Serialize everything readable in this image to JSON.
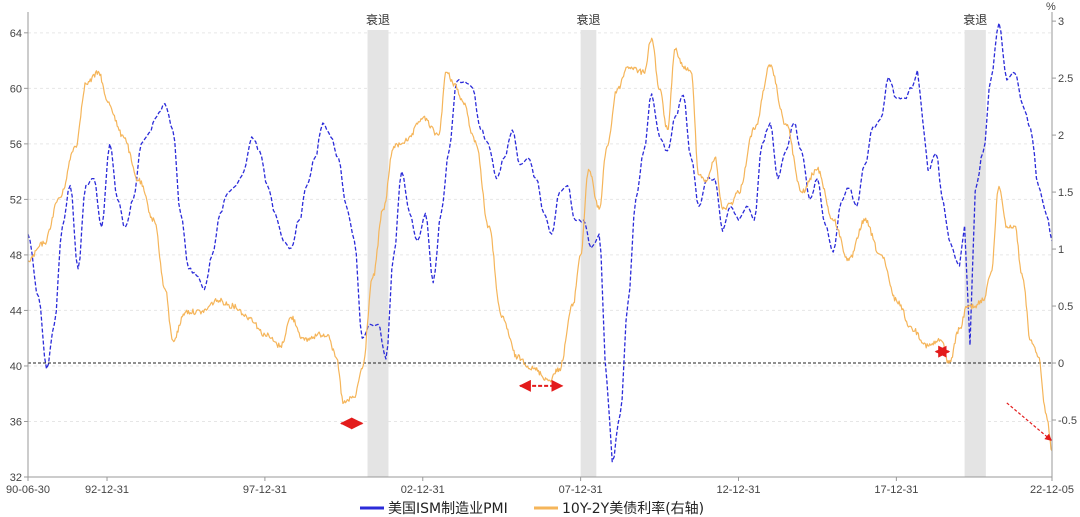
{
  "chart_data": {
    "type": "line",
    "title": "",
    "xlabel": "",
    "ylabel_left": "",
    "ylabel_right": "%",
    "x_range": [
      "1990-06-30",
      "2022-12-05"
    ],
    "x_ticks": [
      "90-06-30",
      "92-12-31",
      "97-12-31",
      "02-12-31",
      "07-12-31",
      "12-12-31",
      "17-12-31",
      "22-12-05"
    ],
    "y_left": {
      "ticks": [
        32,
        36,
        40,
        44,
        48,
        52,
        56,
        60,
        64
      ],
      "range": [
        32,
        65.5
      ]
    },
    "y_right": {
      "ticks": [
        -0.5,
        0,
        0.5,
        1,
        1.5,
        2,
        2.5,
        3
      ],
      "range": [
        -1.0,
        3.08
      ]
    },
    "grid": true,
    "legend_position": "bottom",
    "zero_line_right": 0,
    "recessions": [
      {
        "label": "衰退",
        "start": "2001-03-31",
        "end": "2001-11-30"
      },
      {
        "label": "衰退",
        "start": "2007-12-31",
        "end": "2008-06-30"
      },
      {
        "label": "衰退",
        "start": "2020-02-29",
        "end": "2020-10-31"
      }
    ],
    "inversion_arrows": [
      {
        "from": "2000-05-31",
        "to": "2001-01-31"
      },
      {
        "from": "2006-01-31",
        "to": "2007-05-31"
      },
      {
        "from": "2019-03-31",
        "to": "2019-08-31"
      }
    ],
    "trend_arrow": {
      "from": [
        "2021-06-30",
        -0.35
      ],
      "to": [
        "2022-11-30",
        -0.68
      ]
    },
    "series": [
      {
        "name": "美国ISM制造业PMI",
        "axis": "left",
        "color": "#2b2bd9",
        "style": "dashed",
        "points": [
          [
            "1990-06-30",
            49.5
          ],
          [
            "1990-10-31",
            45
          ],
          [
            "1991-01-31",
            39.8
          ],
          [
            "1991-04-30",
            43
          ],
          [
            "1991-07-31",
            50
          ],
          [
            "1991-10-31",
            53
          ],
          [
            "1992-01-31",
            47
          ],
          [
            "1992-04-30",
            53
          ],
          [
            "1992-07-31",
            53.5
          ],
          [
            "1992-10-31",
            50
          ],
          [
            "1993-01-31",
            56
          ],
          [
            "1993-04-30",
            52
          ],
          [
            "1993-07-31",
            50
          ],
          [
            "1993-10-31",
            52
          ],
          [
            "1994-01-31",
            56
          ],
          [
            "1994-04-30",
            56.8
          ],
          [
            "1994-07-31",
            58
          ],
          [
            "1994-10-31",
            58.9
          ],
          [
            "1995-01-31",
            57
          ],
          [
            "1995-04-30",
            51
          ],
          [
            "1995-07-31",
            47
          ],
          [
            "1995-10-31",
            46.5
          ],
          [
            "1996-01-31",
            45.5
          ],
          [
            "1996-04-30",
            48
          ],
          [
            "1996-07-31",
            51
          ],
          [
            "1996-10-31",
            52.5
          ],
          [
            "1997-01-31",
            53
          ],
          [
            "1997-04-30",
            54
          ],
          [
            "1997-07-31",
            56.5
          ],
          [
            "1997-10-31",
            55.5
          ],
          [
            "1998-01-31",
            53
          ],
          [
            "1998-04-30",
            51
          ],
          [
            "1998-07-31",
            49
          ],
          [
            "1998-10-31",
            48.5
          ],
          [
            "1999-01-31",
            50.5
          ],
          [
            "1999-04-30",
            53
          ],
          [
            "1999-07-31",
            55
          ],
          [
            "1999-10-31",
            57.5
          ],
          [
            "2000-01-31",
            56.5
          ],
          [
            "2000-04-30",
            55
          ],
          [
            "2000-07-31",
            51.5
          ],
          [
            "2000-10-31",
            49
          ],
          [
            "2001-01-31",
            42
          ],
          [
            "2001-04-30",
            43
          ],
          [
            "2001-07-31",
            43
          ],
          [
            "2001-10-31",
            40.5
          ],
          [
            "2002-01-31",
            48
          ],
          [
            "2002-04-30",
            54
          ],
          [
            "2002-07-31",
            51
          ],
          [
            "2002-10-31",
            49
          ],
          [
            "2003-01-31",
            51
          ],
          [
            "2003-04-30",
            46
          ],
          [
            "2003-07-31",
            51
          ],
          [
            "2003-10-31",
            55.5
          ],
          [
            "2004-01-31",
            60.5
          ],
          [
            "2004-04-30",
            60.5
          ],
          [
            "2004-07-31",
            60
          ],
          [
            "2004-10-31",
            57
          ],
          [
            "2005-01-31",
            56
          ],
          [
            "2005-04-30",
            53.5
          ],
          [
            "2005-07-31",
            55
          ],
          [
            "2005-10-31",
            57
          ],
          [
            "2006-01-31",
            54.5
          ],
          [
            "2006-04-30",
            55
          ],
          [
            "2006-07-31",
            53.5
          ],
          [
            "2006-10-31",
            51
          ],
          [
            "2007-01-31",
            49.5
          ],
          [
            "2007-04-30",
            52.5
          ],
          [
            "2007-07-31",
            53
          ],
          [
            "2007-10-31",
            50.5
          ],
          [
            "2008-01-31",
            50.5
          ],
          [
            "2008-04-30",
            48.5
          ],
          [
            "2008-07-31",
            49.5
          ],
          [
            "2008-10-31",
            38.9
          ],
          [
            "2008-12-31",
            33.1
          ],
          [
            "2009-03-31",
            36.5
          ],
          [
            "2009-06-30",
            44.5
          ],
          [
            "2009-09-30",
            52
          ],
          [
            "2009-12-31",
            55.5
          ],
          [
            "2010-03-31",
            59.6
          ],
          [
            "2010-06-30",
            56.5
          ],
          [
            "2010-09-30",
            55.5
          ],
          [
            "2010-12-31",
            58
          ],
          [
            "2011-03-31",
            59.5
          ],
          [
            "2011-06-30",
            55
          ],
          [
            "2011-09-30",
            51.5
          ],
          [
            "2011-12-31",
            53.5
          ],
          [
            "2012-03-31",
            53.5
          ],
          [
            "2012-06-30",
            49.7
          ],
          [
            "2012-09-30",
            51.5
          ],
          [
            "2012-12-31",
            50.5
          ],
          [
            "2013-03-31",
            51.5
          ],
          [
            "2013-06-30",
            50.5
          ],
          [
            "2013-09-30",
            56
          ],
          [
            "2013-12-31",
            57.5
          ],
          [
            "2014-03-31",
            53.5
          ],
          [
            "2014-06-30",
            55.5
          ],
          [
            "2014-09-30",
            57.5
          ],
          [
            "2014-12-31",
            55.5
          ],
          [
            "2015-03-31",
            52
          ],
          [
            "2015-06-30",
            53.5
          ],
          [
            "2015-09-30",
            50.2
          ],
          [
            "2015-12-31",
            48.2
          ],
          [
            "2016-03-31",
            51.8
          ],
          [
            "2016-06-30",
            52.8
          ],
          [
            "2016-09-30",
            51.5
          ],
          [
            "2016-12-31",
            54.5
          ],
          [
            "2017-03-31",
            57.2
          ],
          [
            "2017-06-30",
            57.8
          ],
          [
            "2017-09-30",
            60.8
          ],
          [
            "2017-12-31",
            59.3
          ],
          [
            "2018-03-31",
            59.3
          ],
          [
            "2018-06-30",
            60
          ],
          [
            "2018-08-31",
            61.3
          ],
          [
            "2018-10-31",
            57.7
          ],
          [
            "2018-12-31",
            54.1
          ],
          [
            "2019-03-31",
            55.3
          ],
          [
            "2019-06-30",
            51.7
          ],
          [
            "2019-08-31",
            49.1
          ],
          [
            "2019-12-31",
            47.2
          ],
          [
            "2020-02-29",
            50.1
          ],
          [
            "2020-04-30",
            41.5
          ],
          [
            "2020-06-30",
            52.6
          ],
          [
            "2020-09-30",
            55.4
          ],
          [
            "2020-12-31",
            60.7
          ],
          [
            "2021-03-31",
            64.7
          ],
          [
            "2021-06-30",
            60.6
          ],
          [
            "2021-09-30",
            61.1
          ],
          [
            "2021-12-31",
            58.8
          ],
          [
            "2022-03-31",
            57.1
          ],
          [
            "2022-06-30",
            53
          ],
          [
            "2022-09-30",
            50.9
          ],
          [
            "2022-12-05",
            49
          ]
        ]
      },
      {
        "name": "10Y-2Y美债利率(右轴)",
        "axis": "right",
        "color": "#f5b55a",
        "style": "solid",
        "points": [
          [
            "1990-06-30",
            0.9
          ],
          [
            "1990-12-31",
            1.05
          ],
          [
            "1991-06-30",
            1.45
          ],
          [
            "1991-12-31",
            1.9
          ],
          [
            "1992-04-30",
            2.45
          ],
          [
            "1992-09-30",
            2.55
          ],
          [
            "1992-12-31",
            2.3
          ],
          [
            "1993-06-30",
            2.0
          ],
          [
            "1993-12-31",
            1.6
          ],
          [
            "1994-06-30",
            1.25
          ],
          [
            "1994-10-31",
            0.65
          ],
          [
            "1995-01-31",
            0.2
          ],
          [
            "1995-06-30",
            0.45
          ],
          [
            "1995-12-31",
            0.45
          ],
          [
            "1996-06-30",
            0.55
          ],
          [
            "1996-12-31",
            0.5
          ],
          [
            "1997-06-30",
            0.4
          ],
          [
            "1997-12-31",
            0.25
          ],
          [
            "1998-06-30",
            0.15
          ],
          [
            "1998-10-31",
            0.4
          ],
          [
            "1999-03-31",
            0.2
          ],
          [
            "1999-09-30",
            0.25
          ],
          [
            "1999-12-31",
            0.25
          ],
          [
            "2000-03-31",
            0.05
          ],
          [
            "2000-06-30",
            -0.35
          ],
          [
            "2000-10-31",
            -0.3
          ],
          [
            "2001-01-31",
            -0.05
          ],
          [
            "2001-05-31",
            0.75
          ],
          [
            "2001-09-30",
            1.35
          ],
          [
            "2002-01-31",
            1.9
          ],
          [
            "2002-06-30",
            1.95
          ],
          [
            "2002-12-31",
            2.15
          ],
          [
            "2003-06-30",
            2.0
          ],
          [
            "2003-09-30",
            2.55
          ],
          [
            "2003-12-31",
            2.45
          ],
          [
            "2004-03-31",
            2.3
          ],
          [
            "2004-08-31",
            1.95
          ],
          [
            "2005-01-31",
            1.2
          ],
          [
            "2005-06-30",
            0.4
          ],
          [
            "2005-12-31",
            0.05
          ],
          [
            "2006-06-30",
            -0.05
          ],
          [
            "2006-12-31",
            -0.15
          ],
          [
            "2007-04-30",
            -0.05
          ],
          [
            "2007-09-30",
            0.5
          ],
          [
            "2007-12-31",
            0.95
          ],
          [
            "2008-03-31",
            1.7
          ],
          [
            "2008-07-31",
            1.35
          ],
          [
            "2008-10-31",
            1.9
          ],
          [
            "2009-02-28",
            2.4
          ],
          [
            "2009-06-30",
            2.6
          ],
          [
            "2009-12-31",
            2.55
          ],
          [
            "2010-03-31",
            2.85
          ],
          [
            "2010-06-30",
            2.4
          ],
          [
            "2010-09-30",
            2.05
          ],
          [
            "2010-12-31",
            2.75
          ],
          [
            "2011-03-31",
            2.6
          ],
          [
            "2011-06-30",
            2.55
          ],
          [
            "2011-09-30",
            1.65
          ],
          [
            "2011-12-31",
            1.6
          ],
          [
            "2012-03-31",
            1.8
          ],
          [
            "2012-06-30",
            1.35
          ],
          [
            "2012-09-30",
            1.4
          ],
          [
            "2012-12-31",
            1.5
          ],
          [
            "2013-06-30",
            2.05
          ],
          [
            "2013-12-31",
            2.6
          ],
          [
            "2014-06-30",
            2.1
          ],
          [
            "2014-12-31",
            1.5
          ],
          [
            "2015-06-30",
            1.7
          ],
          [
            "2015-12-31",
            1.25
          ],
          [
            "2016-06-30",
            0.9
          ],
          [
            "2016-12-31",
            1.25
          ],
          [
            "2017-06-30",
            0.95
          ],
          [
            "2017-12-31",
            0.55
          ],
          [
            "2018-06-30",
            0.3
          ],
          [
            "2018-12-31",
            0.15
          ],
          [
            "2019-05-31",
            0.2
          ],
          [
            "2019-08-31",
            0.0
          ],
          [
            "2019-12-31",
            0.3
          ],
          [
            "2020-03-31",
            0.5
          ],
          [
            "2020-06-30",
            0.5
          ],
          [
            "2020-09-30",
            0.55
          ],
          [
            "2020-12-31",
            0.8
          ],
          [
            "2021-03-31",
            1.55
          ],
          [
            "2021-06-30",
            1.2
          ],
          [
            "2021-09-30",
            1.2
          ],
          [
            "2021-12-31",
            0.75
          ],
          [
            "2022-03-31",
            0.2
          ],
          [
            "2022-06-30",
            0.05
          ],
          [
            "2022-09-30",
            -0.45
          ],
          [
            "2022-12-05",
            -0.77
          ]
        ]
      }
    ]
  }
}
